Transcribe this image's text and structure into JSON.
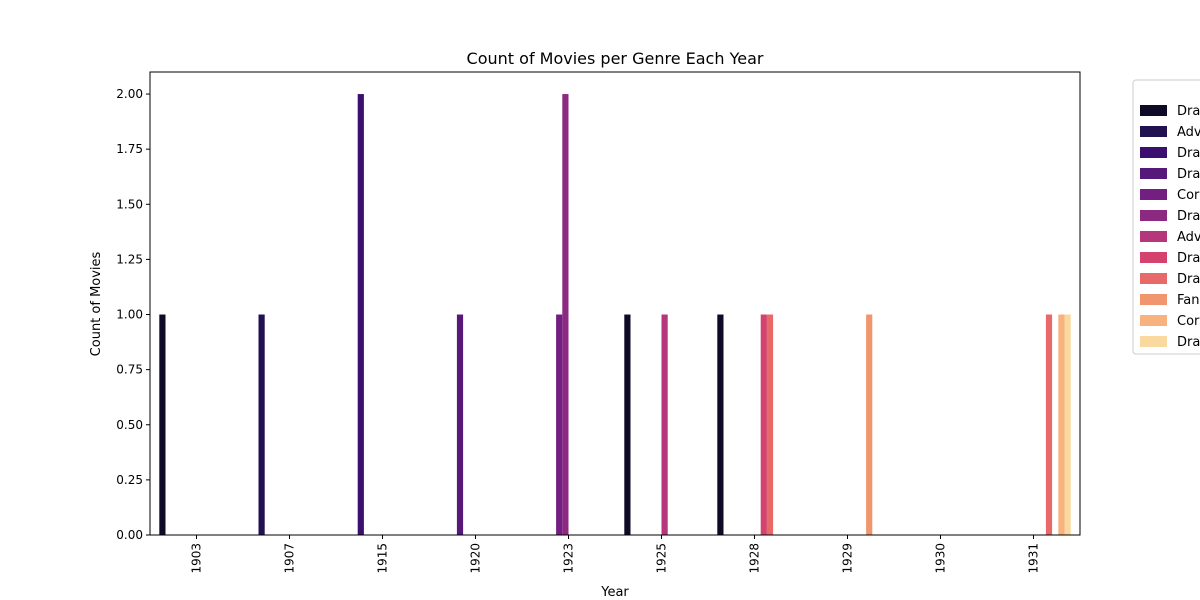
{
  "chart_data": {
    "type": "bar",
    "title": "Count of Movies per Genre Each Year",
    "xlabel": "Year",
    "ylabel": "Count of Movies",
    "ylim": [
      0,
      2.1
    ],
    "yticks": [
      "0.00",
      "0.25",
      "0.50",
      "0.75",
      "1.00",
      "1.25",
      "1.50",
      "1.75",
      "2.00"
    ],
    "ytick_values": [
      0,
      0.25,
      0.5,
      0.75,
      1.0,
      1.25,
      1.5,
      1.75,
      2.0
    ],
    "categories": [
      "1903",
      "1907",
      "1915",
      "1920",
      "1923",
      "1925",
      "1928",
      "1929",
      "1930",
      "1931"
    ],
    "grid": false,
    "legend_position": "outside-right",
    "series": [
      {
        "name": "Dra",
        "color": "#0f0b26",
        "values": [
          1,
          0,
          0,
          0,
          0,
          1,
          1,
          0,
          0,
          0
        ]
      },
      {
        "name": "Adv",
        "color": "#221150",
        "values": [
          0,
          1,
          0,
          0,
          0,
          0,
          0,
          0,
          0,
          0
        ]
      },
      {
        "name": "Dra",
        "color": "#3b0f70",
        "values": [
          0,
          0,
          2,
          0,
          0,
          0,
          0,
          0,
          0,
          0
        ]
      },
      {
        "name": "Dra",
        "color": "#56197a",
        "values": [
          0,
          0,
          0,
          1,
          0,
          0,
          0,
          0,
          0,
          0
        ]
      },
      {
        "name": "Cor",
        "color": "#721f81",
        "values": [
          0,
          0,
          0,
          0,
          1,
          0,
          0,
          0,
          0,
          0
        ]
      },
      {
        "name": "Dra",
        "color": "#8c2981",
        "values": [
          0,
          0,
          0,
          0,
          2,
          0,
          0,
          0,
          0,
          0
        ]
      },
      {
        "name": "Adv",
        "color": "#b5367a",
        "values": [
          0,
          0,
          0,
          0,
          0,
          1,
          0,
          0,
          0,
          0
        ]
      },
      {
        "name": "Dra",
        "color": "#d3436e",
        "values": [
          0,
          0,
          0,
          0,
          0,
          0,
          1,
          0,
          0,
          0
        ]
      },
      {
        "name": "Dra",
        "color": "#e8696a",
        "values": [
          0,
          0,
          0,
          0,
          0,
          0,
          1,
          0,
          0,
          1
        ]
      },
      {
        "name": "Fan",
        "color": "#f1956f",
        "values": [
          0,
          0,
          0,
          0,
          0,
          0,
          0,
          1,
          0,
          0
        ]
      },
      {
        "name": "Cor",
        "color": "#f7b27f",
        "values": [
          0,
          0,
          0,
          0,
          0,
          0,
          0,
          0,
          0,
          1
        ]
      },
      {
        "name": "Dra",
        "color": "#f9d9a0",
        "values": [
          0,
          0,
          0,
          0,
          0,
          0,
          0,
          0,
          0,
          1
        ]
      }
    ]
  }
}
